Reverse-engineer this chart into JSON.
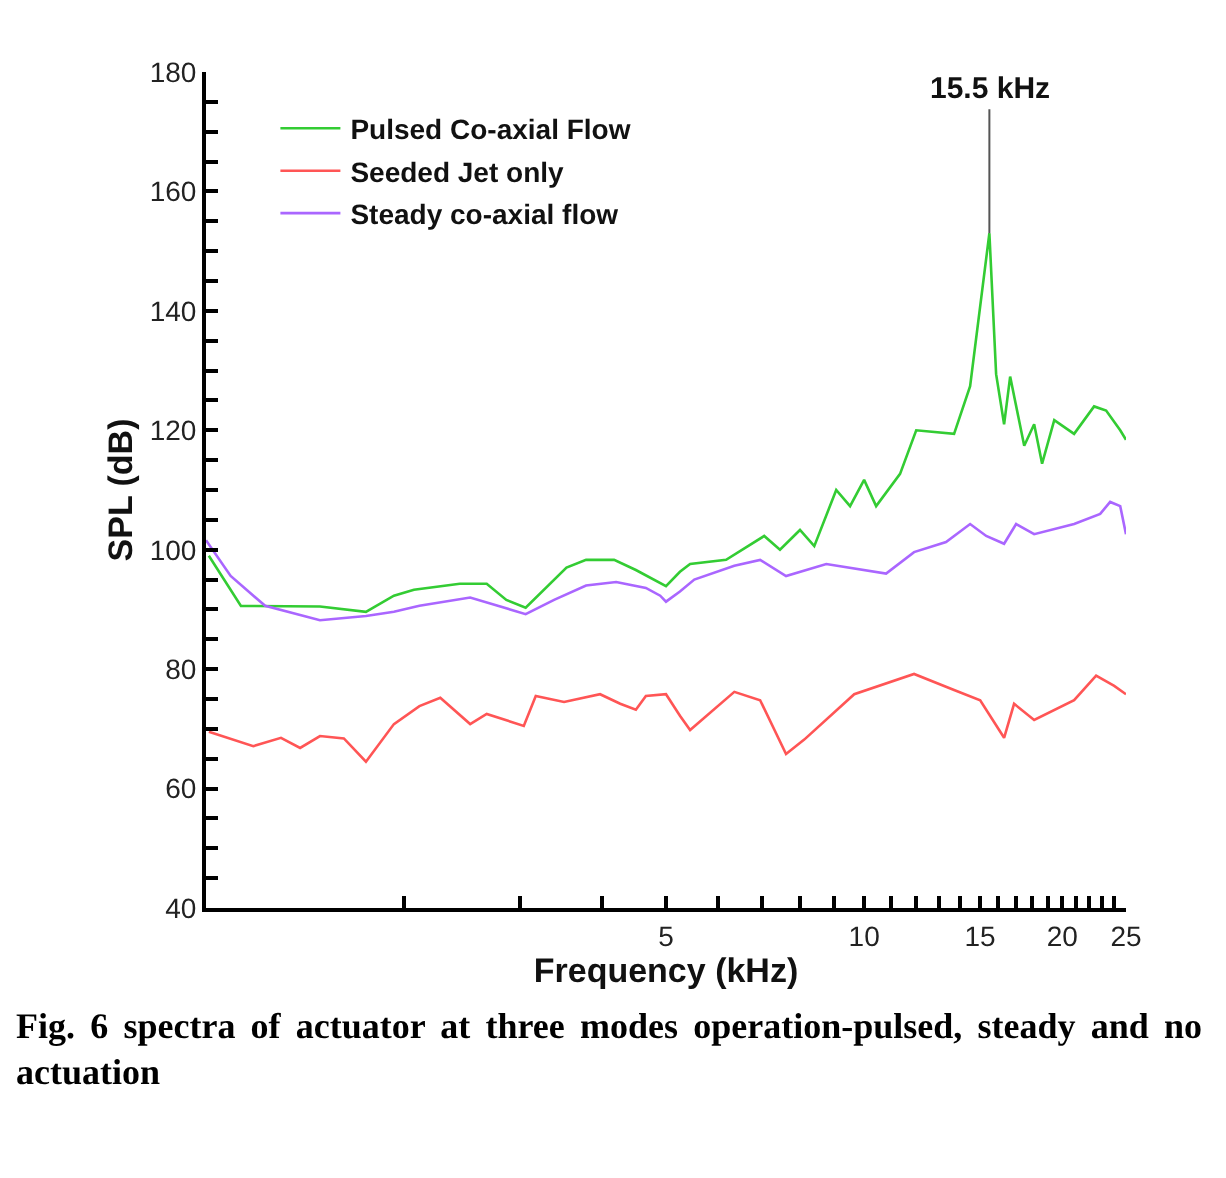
{
  "chart_data": {
    "type": "line",
    "xlabel": "Frequency (kHz)",
    "ylabel": "SPL (dB)",
    "log": "x",
    "xlim": [
      1,
      25
    ],
    "xticks": [
      {
        "value": 2,
        "label": null
      },
      {
        "value": 3,
        "label": null
      },
      {
        "value": 4,
        "label": null
      },
      5,
      {
        "value": 6,
        "label": null
      },
      {
        "value": 7,
        "label": null
      },
      {
        "value": 8,
        "label": null
      },
      {
        "value": 9,
        "label": null
      },
      10,
      {
        "value": 11,
        "label": null
      },
      {
        "value": 12,
        "label": null
      },
      {
        "value": 13,
        "label": null
      },
      {
        "value": 14,
        "label": null
      },
      15,
      {
        "value": 16,
        "label": null
      },
      {
        "value": 17,
        "label": null
      },
      {
        "value": 18,
        "label": null
      },
      {
        "value": 19,
        "label": null
      },
      20,
      {
        "value": 21,
        "label": null
      },
      {
        "value": 22,
        "label": null
      },
      {
        "value": 23,
        "label": null
      },
      {
        "value": 24,
        "label": null
      },
      25
    ],
    "ylim": [
      40,
      180
    ],
    "yticks": [
      40,
      {
        "value": 45,
        "label": null
      },
      {
        "value": 50,
        "label": null
      },
      {
        "value": 55,
        "label": null
      },
      60,
      {
        "value": 65,
        "label": null
      },
      {
        "value": 70,
        "label": null
      },
      {
        "value": 75,
        "label": null
      },
      80,
      {
        "value": 85,
        "label": null
      },
      {
        "value": 90,
        "label": null
      },
      {
        "value": 95,
        "label": null
      },
      100,
      {
        "value": 105,
        "label": null
      },
      {
        "value": 110,
        "label": null
      },
      {
        "value": 115,
        "label": null
      },
      120,
      {
        "value": 125,
        "label": null
      },
      {
        "value": 130,
        "label": null
      },
      {
        "value": 135,
        "label": null
      },
      140,
      {
        "value": 145,
        "label": null
      },
      {
        "value": 150,
        "label": null
      },
      {
        "value": 155,
        "label": null
      },
      160,
      {
        "value": 165,
        "label": null
      },
      {
        "value": 170,
        "label": null
      },
      {
        "value": 175,
        "label": null
      },
      180
    ],
    "grid": false,
    "legend": "top left",
    "marker": "none",
    "line_style": "solid",
    "series": [
      {
        "name": "Pulsed Co-axial Flow",
        "color": "#33cc33",
        "x": [
          1.01,
          1.13,
          1.49,
          1.75,
          1.93,
          2.07,
          2.43,
          2.67,
          2.86,
          3.06,
          3.53,
          3.78,
          4.17,
          4.5,
          5.0,
          5.25,
          5.44,
          6.17,
          7.05,
          7.45,
          7.99,
          8.4,
          9.07,
          9.52,
          10.0,
          10.43,
          11.34,
          12.0,
          13.7,
          14.49,
          15.5,
          15.87,
          16.32,
          16.67,
          17.51,
          18.13,
          18.64,
          19.45,
          20.85,
          22.36,
          23.32,
          24.5,
          25.0
        ],
        "values": [
          99,
          90.6,
          90.5,
          89.6,
          92.3,
          93.3,
          94.3,
          94.3,
          91.6,
          90.3,
          97,
          98.3,
          98.3,
          96.6,
          93.9,
          96.3,
          97.6,
          98.3,
          102.3,
          100,
          103.3,
          100.6,
          110,
          107.3,
          111.7,
          107.3,
          112.7,
          120,
          119.4,
          127.4,
          153,
          129.4,
          121,
          129,
          117.4,
          121,
          114.4,
          121.7,
          119.4,
          124,
          123.3,
          120,
          118.4
        ]
      },
      {
        "name": "Seeded Jet only",
        "color": "#ff5555",
        "x": [
          1.01,
          1.18,
          1.3,
          1.39,
          1.49,
          1.62,
          1.75,
          1.93,
          2.11,
          2.27,
          2.52,
          2.67,
          3.04,
          3.17,
          3.5,
          3.97,
          4.26,
          4.5,
          4.66,
          5.0,
          5.25,
          5.44,
          6.35,
          6.95,
          7.61,
          8.11,
          9.66,
          11.91,
          13.7,
          15.01,
          16.32,
          16.9,
          18.13,
          20.85,
          22.52,
          23.99,
          25.0
        ],
        "values": [
          69.5,
          67.1,
          68.5,
          66.8,
          68.8,
          68.4,
          64.5,
          70.8,
          73.8,
          75.2,
          70.8,
          72.5,
          70.5,
          75.5,
          74.5,
          75.8,
          74.2,
          73.2,
          75.5,
          75.8,
          72.2,
          69.8,
          76.2,
          74.8,
          65.8,
          68.2,
          75.8,
          79.2,
          76.5,
          74.8,
          68.5,
          74.2,
          71.5,
          74.8,
          78.9,
          77.2,
          75.8
        ]
      },
      {
        "name": "Steady co-axial flow",
        "color": "#aa66ff",
        "x": [
          1.0,
          1.09,
          1.23,
          1.49,
          1.75,
          1.93,
          2.11,
          2.52,
          3.06,
          3.38,
          3.78,
          4.2,
          4.66,
          4.9,
          5.0,
          5.25,
          5.52,
          6.35,
          6.95,
          7.61,
          8.76,
          10.8,
          11.91,
          13.32,
          14.49,
          15.33,
          16.32,
          17.02,
          18.13,
          20.85,
          22.84,
          23.65,
          24.5,
          25.0
        ],
        "values": [
          101.6,
          95.6,
          90.6,
          88.2,
          88.9,
          89.6,
          90.6,
          92,
          89.2,
          91.6,
          94,
          94.6,
          93.6,
          92.3,
          91.3,
          93,
          95,
          97.3,
          98.3,
          95.6,
          97.6,
          96,
          99.6,
          101.3,
          104.3,
          102.3,
          101,
          104.3,
          102.6,
          104.3,
          106,
          108,
          107.3,
          102.6
        ]
      }
    ],
    "annotations": [
      {
        "text": "15.5 kHz",
        "x": 15.5,
        "y": 153
      },
      "Fig. 6 spectra of actuator at three modes operation-pulsed, steady and no actuation"
    ]
  }
}
